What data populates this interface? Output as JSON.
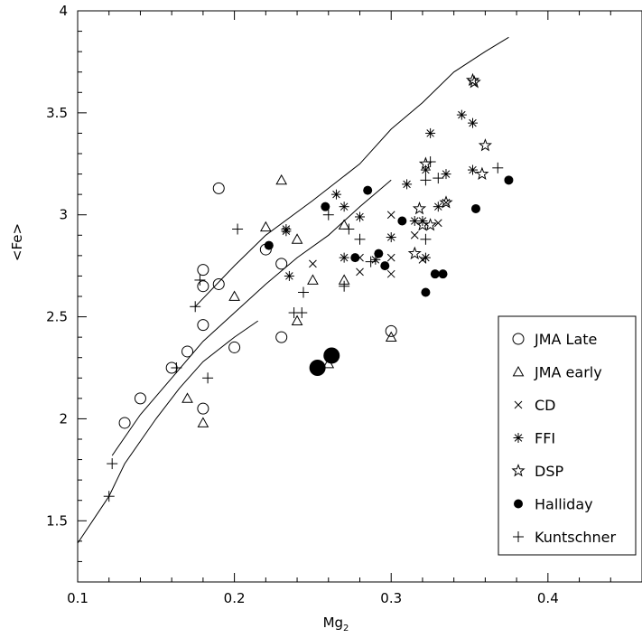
{
  "chart_data": {
    "type": "scatter",
    "xlabel": "Mg",
    "xlabel_sub": "2",
    "ylabel": "<Fe>",
    "xlim": [
      0.1,
      0.46
    ],
    "ylim": [
      1.2,
      4.0
    ],
    "xticks": [
      0.1,
      0.2,
      0.3,
      0.4
    ],
    "xtick_labels": [
      "0.1",
      "0.2",
      "0.3",
      "0.4"
    ],
    "yticks": [
      1.5,
      2.0,
      2.5,
      3.0,
      3.5,
      4.0
    ],
    "ytick_labels": [
      "1.5",
      "2",
      "2.5",
      "3",
      "3.5",
      "4"
    ],
    "grid": false,
    "legend_position": "bottom-right",
    "color": "#000000",
    "lines": [
      {
        "points": [
          [
            0.1,
            1.39
          ],
          [
            0.12,
            1.62
          ],
          [
            0.13,
            1.78
          ],
          [
            0.15,
            2.0
          ],
          [
            0.165,
            2.15
          ],
          [
            0.18,
            2.28
          ],
          [
            0.2,
            2.4
          ],
          [
            0.215,
            2.48
          ]
        ]
      },
      {
        "points": [
          [
            0.122,
            1.82
          ],
          [
            0.14,
            2.02
          ],
          [
            0.16,
            2.2
          ],
          [
            0.18,
            2.38
          ],
          [
            0.2,
            2.52
          ],
          [
            0.22,
            2.66
          ],
          [
            0.24,
            2.79
          ],
          [
            0.26,
            2.9
          ],
          [
            0.28,
            3.04
          ],
          [
            0.3,
            3.17
          ]
        ]
      },
      {
        "points": [
          [
            0.175,
            2.55
          ],
          [
            0.2,
            2.75
          ],
          [
            0.22,
            2.9
          ],
          [
            0.25,
            3.07
          ],
          [
            0.28,
            3.25
          ],
          [
            0.3,
            3.42
          ],
          [
            0.32,
            3.55
          ],
          [
            0.34,
            3.7
          ],
          [
            0.36,
            3.8
          ],
          [
            0.375,
            3.87
          ]
        ]
      }
    ],
    "series": [
      {
        "name": "JMA Late",
        "marker": "open-circle",
        "points": [
          [
            0.13,
            1.98
          ],
          [
            0.14,
            2.1
          ],
          [
            0.16,
            2.25
          ],
          [
            0.17,
            2.33
          ],
          [
            0.18,
            2.46
          ],
          [
            0.18,
            2.65
          ],
          [
            0.18,
            2.73
          ],
          [
            0.19,
            2.66
          ],
          [
            0.19,
            3.13
          ],
          [
            0.18,
            2.05
          ],
          [
            0.2,
            2.35
          ],
          [
            0.22,
            2.83
          ],
          [
            0.23,
            2.76
          ],
          [
            0.23,
            2.4
          ],
          [
            0.3,
            2.43
          ]
        ]
      },
      {
        "name": "JMA early",
        "marker": "open-triangle",
        "points": [
          [
            0.17,
            2.1
          ],
          [
            0.18,
            1.98
          ],
          [
            0.2,
            2.6
          ],
          [
            0.22,
            2.94
          ],
          [
            0.23,
            3.17
          ],
          [
            0.24,
            2.88
          ],
          [
            0.24,
            2.48
          ],
          [
            0.25,
            2.68
          ],
          [
            0.26,
            2.27
          ],
          [
            0.27,
            2.95
          ],
          [
            0.27,
            2.68
          ],
          [
            0.3,
            2.4
          ]
        ]
      },
      {
        "name": "CD",
        "marker": "cross",
        "points": [
          [
            0.25,
            2.76
          ],
          [
            0.28,
            2.72
          ],
          [
            0.28,
            2.79
          ],
          [
            0.3,
            3.0
          ],
          [
            0.3,
            2.79
          ],
          [
            0.3,
            2.71
          ],
          [
            0.315,
            2.9
          ],
          [
            0.32,
            2.78
          ],
          [
            0.33,
            2.96
          ],
          [
            0.335,
            3.06
          ]
        ]
      },
      {
        "name": "FFI",
        "marker": "asterisk",
        "points": [
          [
            0.233,
            2.93
          ],
          [
            0.233,
            2.92
          ],
          [
            0.235,
            2.7
          ],
          [
            0.27,
            2.79
          ],
          [
            0.27,
            3.04
          ],
          [
            0.265,
            3.1
          ],
          [
            0.28,
            2.99
          ],
          [
            0.29,
            2.78
          ],
          [
            0.3,
            2.89
          ],
          [
            0.31,
            3.15
          ],
          [
            0.315,
            2.97
          ],
          [
            0.32,
            2.97
          ],
          [
            0.322,
            3.22
          ],
          [
            0.325,
            3.4
          ],
          [
            0.33,
            3.04
          ],
          [
            0.335,
            3.2
          ],
          [
            0.345,
            3.49
          ],
          [
            0.352,
            3.45
          ],
          [
            0.352,
            3.22
          ],
          [
            0.322,
            2.79
          ]
        ]
      },
      {
        "name": "DSP",
        "marker": "open-star",
        "points": [
          [
            0.315,
            2.81
          ],
          [
            0.318,
            3.03
          ],
          [
            0.32,
            2.95
          ],
          [
            0.322,
            3.25
          ],
          [
            0.325,
            2.95
          ],
          [
            0.335,
            3.06
          ],
          [
            0.352,
            3.66
          ],
          [
            0.353,
            3.65
          ],
          [
            0.358,
            3.2
          ],
          [
            0.36,
            3.34
          ]
        ]
      },
      {
        "name": "Halliday",
        "marker": "filled-circle",
        "points": [
          [
            0.222,
            2.85
          ],
          [
            0.258,
            3.04
          ],
          [
            0.277,
            2.79
          ],
          [
            0.285,
            3.12
          ],
          [
            0.292,
            2.81
          ],
          [
            0.296,
            2.75
          ],
          [
            0.307,
            2.97
          ],
          [
            0.322,
            2.62
          ],
          [
            0.328,
            2.71
          ],
          [
            0.333,
            2.71
          ],
          [
            0.354,
            3.03
          ],
          [
            0.375,
            3.17
          ]
        ]
      },
      {
        "name": "Halliday (large)",
        "marker": "filled-circle-large",
        "points": [
          [
            0.253,
            2.25
          ],
          [
            0.262,
            2.31
          ]
        ]
      },
      {
        "name": "Kuntschner",
        "marker": "plus",
        "points": [
          [
            0.12,
            1.62
          ],
          [
            0.122,
            1.78
          ],
          [
            0.163,
            2.25
          ],
          [
            0.175,
            2.55
          ],
          [
            0.178,
            2.68
          ],
          [
            0.183,
            2.2
          ],
          [
            0.202,
            2.93
          ],
          [
            0.238,
            2.52
          ],
          [
            0.243,
            2.52
          ],
          [
            0.244,
            2.62
          ],
          [
            0.26,
            3.0
          ],
          [
            0.27,
            2.65
          ],
          [
            0.273,
            2.93
          ],
          [
            0.28,
            2.88
          ],
          [
            0.287,
            2.77
          ],
          [
            0.322,
            2.88
          ],
          [
            0.322,
            3.17
          ],
          [
            0.325,
            3.26
          ],
          [
            0.33,
            3.18
          ],
          [
            0.368,
            3.23
          ]
        ]
      }
    ],
    "legend": [
      {
        "label": "JMA Late",
        "marker": "open-circle"
      },
      {
        "label": "JMA early",
        "marker": "open-triangle"
      },
      {
        "label": "CD",
        "marker": "cross"
      },
      {
        "label": "FFI",
        "marker": "asterisk"
      },
      {
        "label": "DSP",
        "marker": "open-star"
      },
      {
        "label": "Halliday",
        "marker": "filled-circle"
      },
      {
        "label": "Kuntschner",
        "marker": "plus"
      }
    ]
  }
}
